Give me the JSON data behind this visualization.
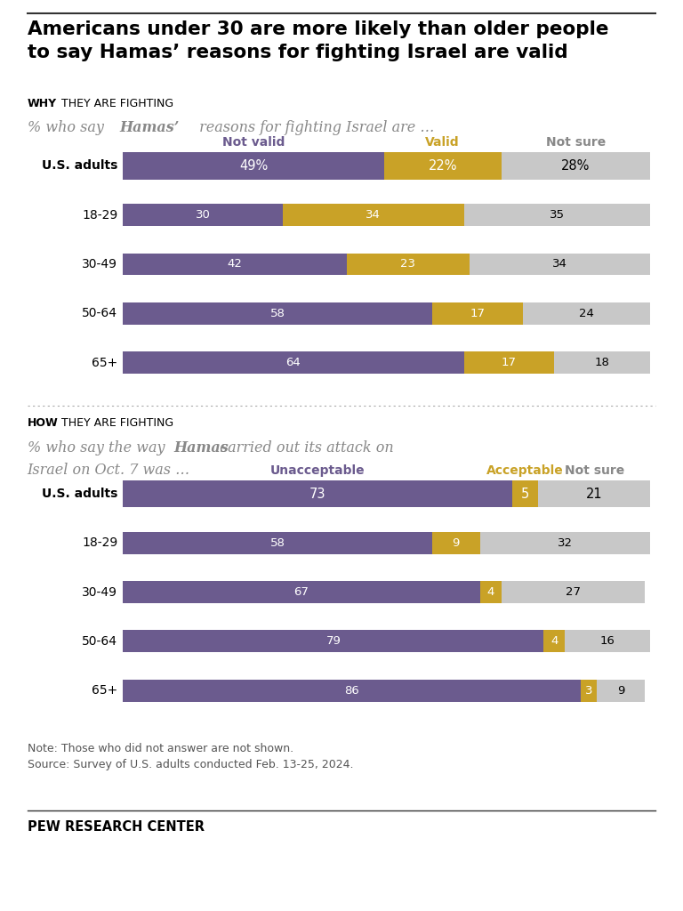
{
  "title_line1": "Americans under 30 are more likely than older people",
  "title_line2": "to say Hamas’ reasons for fighting Israel are valid",
  "section1_label_bold": "WHY",
  "section1_label_rest": " THEY ARE FIGHTING",
  "section2_label_bold": "HOW",
  "section2_label_rest": " THEY ARE FIGHTING",
  "section1_col1": "Not valid",
  "section1_col2": "Valid",
  "section1_col3": "Not sure",
  "section2_col1": "Unacceptable",
  "section2_col2": "Acceptable",
  "section2_col3": "Not sure",
  "color_purple": "#6b5b8e",
  "color_gold": "#c9a227",
  "color_gray": "#c8c8c8",
  "section1_categories": [
    "U.S. adults",
    "18-29",
    "30-49",
    "50-64",
    "65+"
  ],
  "section1_data": [
    [
      49,
      22,
      28
    ],
    [
      30,
      34,
      35
    ],
    [
      42,
      23,
      34
    ],
    [
      58,
      17,
      24
    ],
    [
      64,
      17,
      18
    ]
  ],
  "section1_labels": [
    [
      "49%",
      "22%",
      "28%"
    ],
    [
      "30",
      "34",
      "35"
    ],
    [
      "42",
      "23",
      "34"
    ],
    [
      "58",
      "17",
      "24"
    ],
    [
      "64",
      "17",
      "18"
    ]
  ],
  "section2_categories": [
    "U.S. adults",
    "18-29",
    "30-49",
    "50-64",
    "65+"
  ],
  "section2_data": [
    [
      73,
      5,
      21
    ],
    [
      58,
      9,
      32
    ],
    [
      67,
      4,
      27
    ],
    [
      79,
      4,
      16
    ],
    [
      86,
      3,
      9
    ]
  ],
  "section2_labels": [
    [
      "73",
      "5",
      "21"
    ],
    [
      "58",
      "9",
      "32"
    ],
    [
      "67",
      "4",
      "27"
    ],
    [
      "79",
      "4",
      "16"
    ],
    [
      "86",
      "3",
      "9"
    ]
  ],
  "note": "Note: Those who did not answer are not shown.",
  "source": "Source: Survey of U.S. adults conducted Feb. 13-25, 2024.",
  "footer": "PEW RESEARCH CENTER",
  "bg_color": "#ffffff"
}
